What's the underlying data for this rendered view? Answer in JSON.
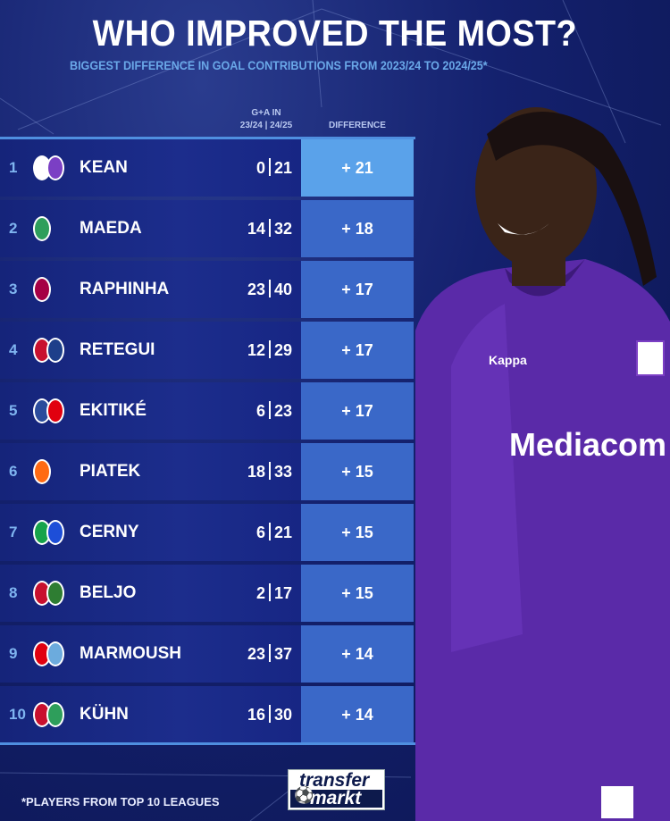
{
  "title": "WHO IMPROVED THE MOST?",
  "subtitle": "BIGGEST DIFFERENCE IN GOAL CONTRIBUTIONS FROM 2023/24 TO 2024/25*",
  "headers": {
    "ga_line1": "G+A IN",
    "ga_line2": "23/24 | 24/25",
    "difference": "DIFFERENCE"
  },
  "rows": [
    {
      "rank": "1",
      "name": "KEAN",
      "prev": "0",
      "curr": "21",
      "diff": "+ 21",
      "colors": [
        "#ffffff",
        "#7b3fc4"
      ]
    },
    {
      "rank": "2",
      "name": "MAEDA",
      "prev": "14",
      "curr": "32",
      "diff": "+ 18",
      "colors": [
        "#2e9e5b"
      ]
    },
    {
      "rank": "3",
      "name": "RAPHINHA",
      "prev": "23",
      "curr": "40",
      "diff": "+ 17",
      "colors": [
        "#a50044"
      ]
    },
    {
      "rank": "4",
      "name": "RETEGUI",
      "prev": "12",
      "curr": "29",
      "diff": "+ 17",
      "colors": [
        "#c8102e",
        "#1e3f8a"
      ]
    },
    {
      "rank": "5",
      "name": "EKITIKÉ",
      "prev": "6",
      "curr": "23",
      "diff": "+ 17",
      "colors": [
        "#2b4c9c",
        "#e1000f"
      ]
    },
    {
      "rank": "6",
      "name": "PIATEK",
      "prev": "18",
      "curr": "33",
      "diff": "+ 15",
      "colors": [
        "#ff6a13"
      ]
    },
    {
      "rank": "7",
      "name": "CERNY",
      "prev": "6",
      "curr": "21",
      "diff": "+ 15",
      "colors": [
        "#16a34a",
        "#1d4ed8"
      ]
    },
    {
      "rank": "8",
      "name": "BELJO",
      "prev": "2",
      "curr": "17",
      "diff": "+ 15",
      "colors": [
        "#c8102e",
        "#2e7d32"
      ]
    },
    {
      "rank": "9",
      "name": "MARMOUSH",
      "prev": "23",
      "curr": "37",
      "diff": "+ 14",
      "colors": [
        "#e1000f",
        "#6cabdd"
      ]
    },
    {
      "rank": "10",
      "name": "KÜHN",
      "prev": "16",
      "curr": "30",
      "diff": "+ 14",
      "colors": [
        "#c8102e",
        "#2e9e5b"
      ]
    }
  ],
  "footer": "*PLAYERS FROM TOP 10 LEAGUES",
  "logo": {
    "line1": "transfer",
    "line2": "markt"
  },
  "photo": {
    "sponsor": "Mediacom",
    "kit": "Kappa"
  }
}
